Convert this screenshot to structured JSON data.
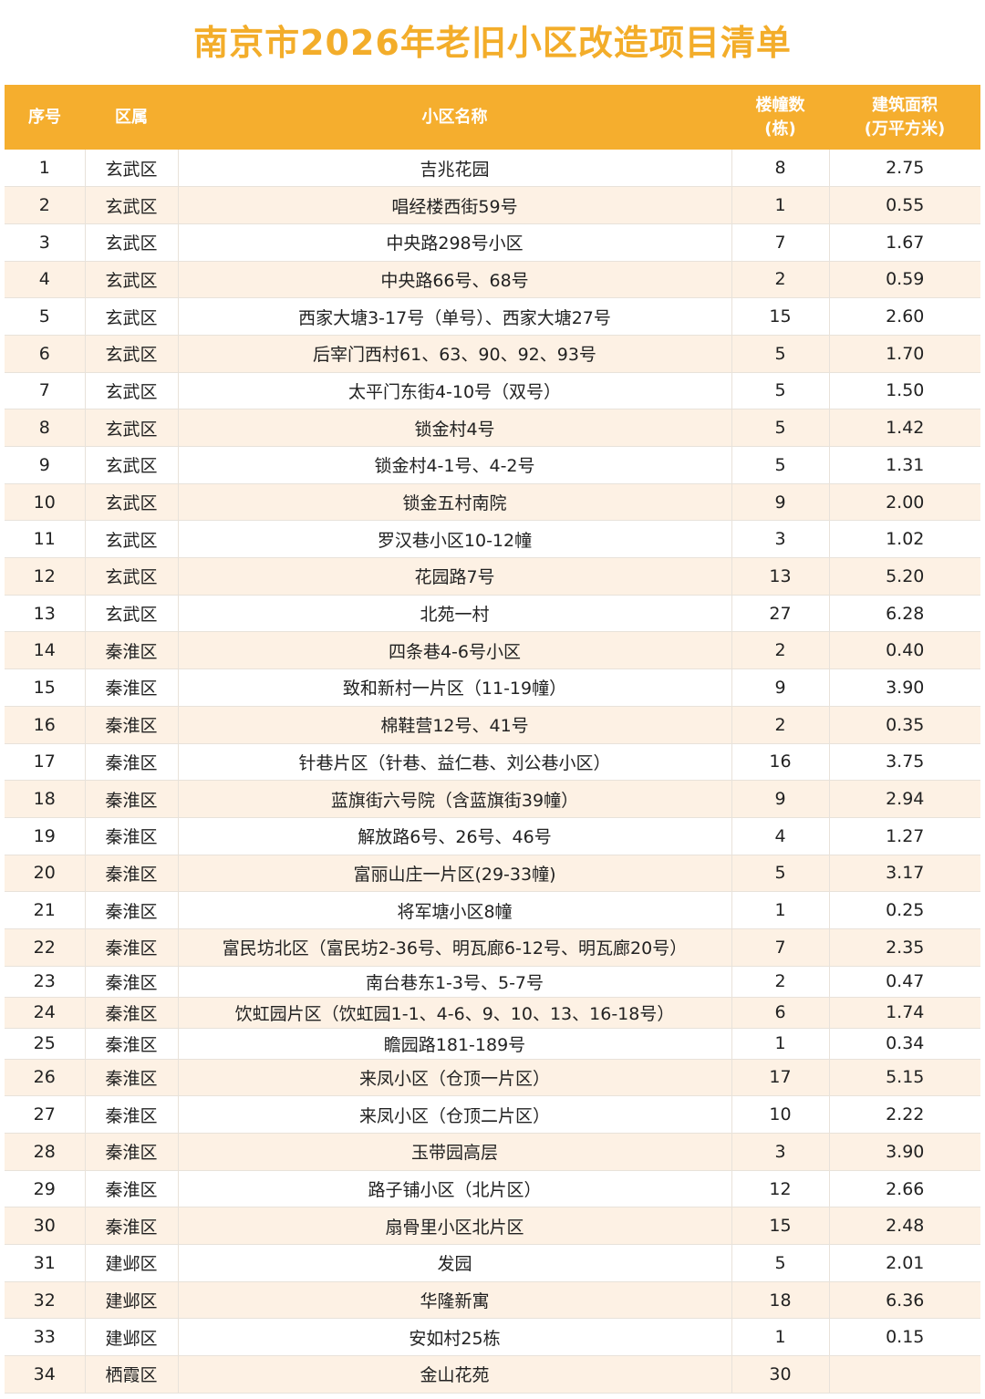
{
  "title": "南京市2026年老旧小区改造项目清单",
  "colors": {
    "accent": "#f5ae2e",
    "title": "#f3ad2a",
    "stripe": "#fdf1e4"
  },
  "headers": {
    "no": "序号",
    "district": "区属",
    "name": "小区名称",
    "buildings_line1": "楼幢数",
    "buildings_line2": "(栋)",
    "area_line1": "建筑面积",
    "area_line2": "(万平方米)"
  },
  "rows": [
    {
      "no": "1",
      "district": "玄武区",
      "name": "吉兆花园",
      "buildings": "8",
      "area": "2.75"
    },
    {
      "no": "2",
      "district": "玄武区",
      "name": "唱经楼西街59号",
      "buildings": "1",
      "area": "0.55"
    },
    {
      "no": "3",
      "district": "玄武区",
      "name": "中央路298号小区",
      "buildings": "7",
      "area": "1.67"
    },
    {
      "no": "4",
      "district": "玄武区",
      "name": "中央路66号、68号",
      "buildings": "2",
      "area": "0.59"
    },
    {
      "no": "5",
      "district": "玄武区",
      "name": "西家大塘3-17号（单号）、西家大塘27号",
      "buildings": "15",
      "area": "2.60"
    },
    {
      "no": "6",
      "district": "玄武区",
      "name": "后宰门西村61、63、90、92、93号",
      "buildings": "5",
      "area": "1.70"
    },
    {
      "no": "7",
      "district": "玄武区",
      "name": "太平门东街4-10号（双号）",
      "buildings": "5",
      "area": "1.50"
    },
    {
      "no": "8",
      "district": "玄武区",
      "name": "锁金村4号",
      "buildings": "5",
      "area": "1.42"
    },
    {
      "no": "9",
      "district": "玄武区",
      "name": "锁金村4-1号、4-2号",
      "buildings": "5",
      "area": "1.31"
    },
    {
      "no": "10",
      "district": "玄武区",
      "name": "锁金五村南院",
      "buildings": "9",
      "area": "2.00"
    },
    {
      "no": "11",
      "district": "玄武区",
      "name": "罗汉巷小区10-12幢",
      "buildings": "3",
      "area": "1.02"
    },
    {
      "no": "12",
      "district": "玄武区",
      "name": "花园路7号",
      "buildings": "13",
      "area": "5.20"
    },
    {
      "no": "13",
      "district": "玄武区",
      "name": "北苑一村",
      "buildings": "27",
      "area": "6.28"
    },
    {
      "no": "14",
      "district": "秦淮区",
      "name": "四条巷4-6号小区",
      "buildings": "2",
      "area": "0.40"
    },
    {
      "no": "15",
      "district": "秦淮区",
      "name": "致和新村一片区（11-19幢）",
      "buildings": "9",
      "area": "3.90"
    },
    {
      "no": "16",
      "district": "秦淮区",
      "name": "棉鞋营12号、41号",
      "buildings": "2",
      "area": "0.35"
    },
    {
      "no": "17",
      "district": "秦淮区",
      "name": "针巷片区（针巷、益仁巷、刘公巷小区）",
      "buildings": "16",
      "area": "3.75"
    },
    {
      "no": "18",
      "district": "秦淮区",
      "name": "蓝旗街六号院（含蓝旗街39幢）",
      "buildings": "9",
      "area": "2.94"
    },
    {
      "no": "19",
      "district": "秦淮区",
      "name": "解放路6号、26号、46号",
      "buildings": "4",
      "area": "1.27"
    },
    {
      "no": "20",
      "district": "秦淮区",
      "name": "富丽山庄一片区(29-33幢)",
      "buildings": "5",
      "area": "3.17"
    },
    {
      "no": "21",
      "district": "秦淮区",
      "name": "将军塘小区8幢",
      "buildings": "1",
      "area": "0.25"
    },
    {
      "no": "22",
      "district": "秦淮区",
      "name": "富民坊北区（富民坊2-36号、明瓦廊6-12号、明瓦廊20号）",
      "buildings": "7",
      "area": "2.35"
    },
    {
      "no": "23",
      "district": "秦淮区",
      "name": "南台巷东1-3号、5-7号",
      "buildings": "2",
      "area": "0.47"
    },
    {
      "no": "24",
      "district": "秦淮区",
      "name": "饮虹园片区（饮虹园1-1、4-6、9、10、13、16-18号）",
      "buildings": "6",
      "area": "1.74"
    },
    {
      "no": "25",
      "district": "秦淮区",
      "name": "瞻园路181-189号",
      "buildings": "1",
      "area": "0.34"
    },
    {
      "no": "26",
      "district": "秦淮区",
      "name": "来凤小区（仓顶一片区）",
      "buildings": "17",
      "area": "5.15"
    },
    {
      "no": "27",
      "district": "秦淮区",
      "name": "来凤小区（仓顶二片区）",
      "buildings": "10",
      "area": "2.22"
    },
    {
      "no": "28",
      "district": "秦淮区",
      "name": "玉带园高层",
      "buildings": "3",
      "area": "3.90"
    },
    {
      "no": "29",
      "district": "秦淮区",
      "name": "路子铺小区（北片区）",
      "buildings": "12",
      "area": "2.66"
    },
    {
      "no": "30",
      "district": "秦淮区",
      "name": "扇骨里小区北片区",
      "buildings": "15",
      "area": "2.48"
    },
    {
      "no": "31",
      "district": "建邺区",
      "name": "发园",
      "buildings": "5",
      "area": "2.01"
    },
    {
      "no": "32",
      "district": "建邺区",
      "name": "华隆新寓",
      "buildings": "18",
      "area": "6.36"
    },
    {
      "no": "33",
      "district": "建邺区",
      "name": "安如村25栋",
      "buildings": "1",
      "area": "0.15"
    },
    {
      "no": "34",
      "district": "栖霞区",
      "name": "金山花苑",
      "buildings": "30",
      "area": ""
    }
  ]
}
